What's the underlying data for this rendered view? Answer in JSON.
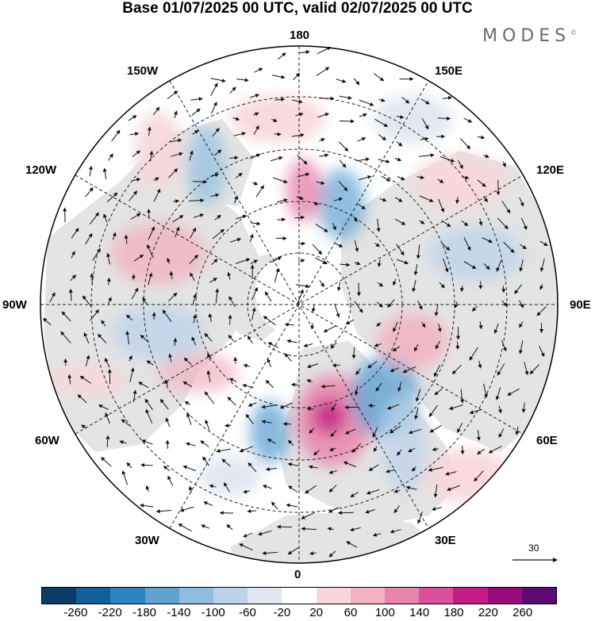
{
  "title": "Base 01/07/2025 00 UTC, valid 02/07/2025 00 UTC",
  "brand": "MODES",
  "brand_mark": "©",
  "longitude_labels": {
    "n180": "180",
    "e150": "150E",
    "e120": "120E",
    "e90": "90E",
    "e60": "60E",
    "e30": "30E",
    "s0": "0",
    "w30": "30W",
    "w60": "60W",
    "w90": "90W",
    "w120": "120W",
    "w150": "150W"
  },
  "reference_vector": {
    "value": "30"
  },
  "colorbar": {
    "colors": [
      "#0b3b66",
      "#125f99",
      "#2a83c2",
      "#5fa2d3",
      "#90bde0",
      "#bdd3ea",
      "#e2e6f1",
      "#ffffff",
      "#f7d6dc",
      "#f1b1c2",
      "#e985ad",
      "#dd4f98",
      "#c41c84",
      "#9b0b7b",
      "#5d0a74"
    ],
    "ticks": [
      "-260",
      "-220",
      "-180",
      "-140",
      "-100",
      "-60",
      "-20",
      "20",
      "60",
      "100",
      "140",
      "180",
      "220",
      "260"
    ]
  }
}
